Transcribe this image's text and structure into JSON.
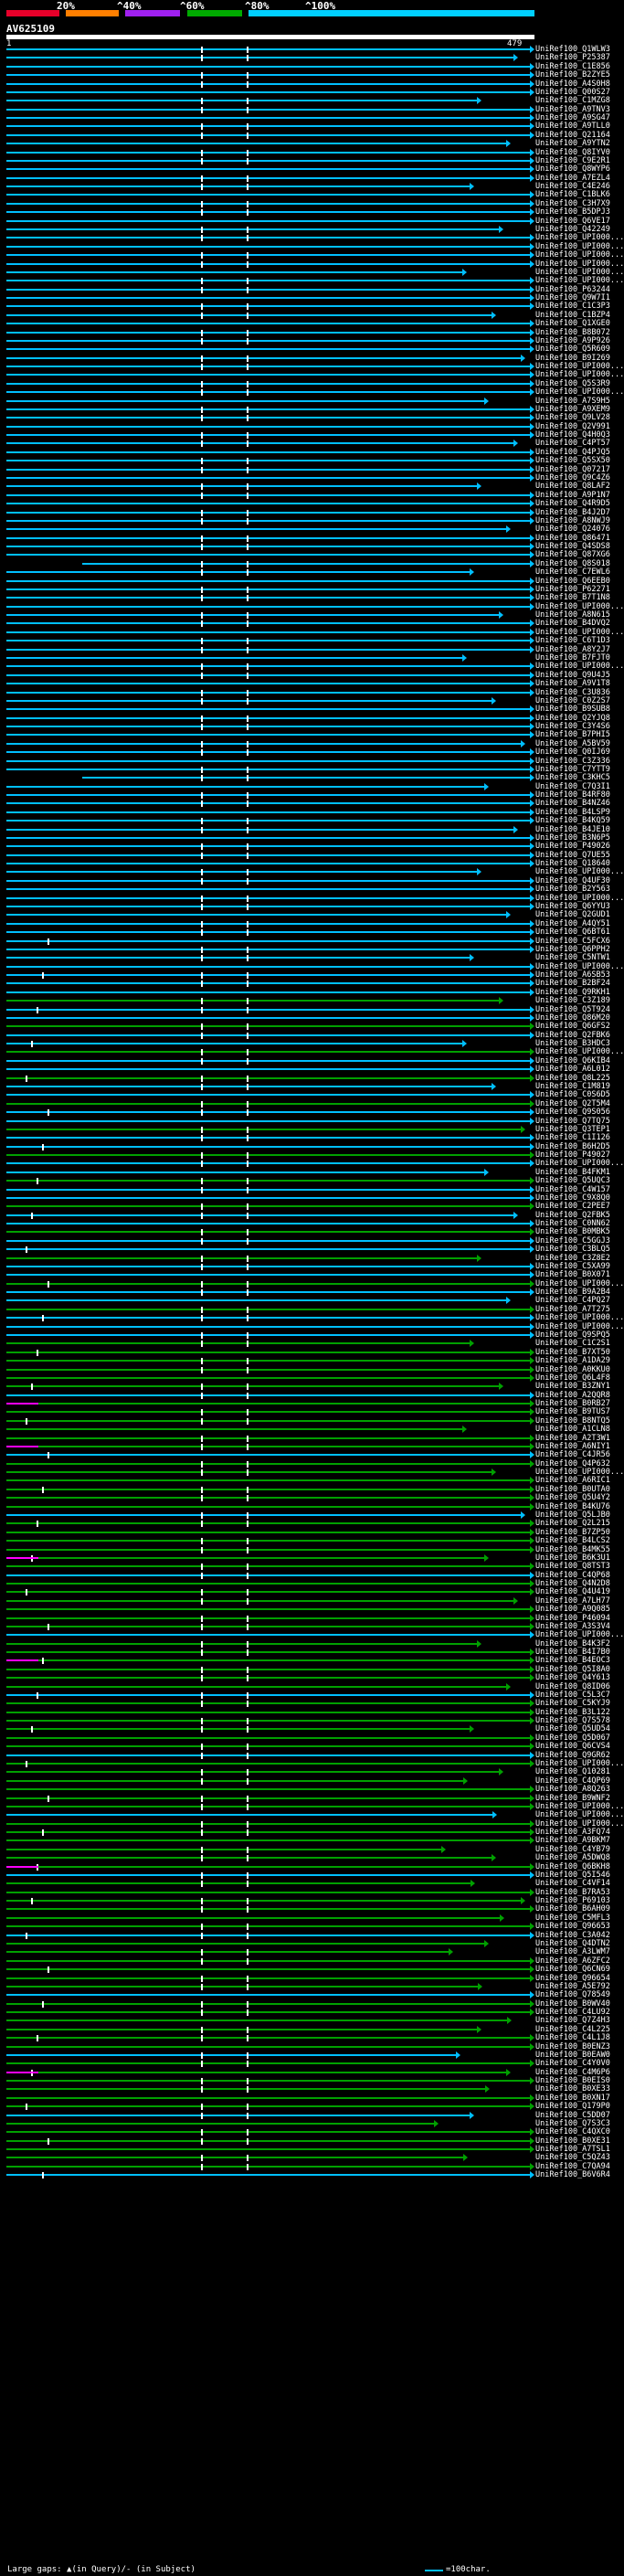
{
  "legend": {
    "ticks": [
      "20%",
      "^40%",
      "^60%",
      "^80%",
      "^100%"
    ],
    "colors": [
      "#e8002a",
      "#ff7f00",
      "#a020f0",
      "#00aa00",
      "#00cfff"
    ]
  },
  "query": {
    "title": "AV625109",
    "start": "1",
    "end": "479"
  },
  "colors": {
    "cyan": "#00bfff",
    "green": "#00a000",
    "magenta": "#ff00ff"
  },
  "hits": [
    "UniRef100_Q1WLW3",
    "UniRef100_P25387",
    "UniRef100_C1E856",
    "UniRef100_B2ZYE5",
    "UniRef100_A4S0H8",
    "UniRef100_Q00S27",
    "UniRef100_C1MZG8",
    "UniRef100_A9TNV3",
    "UniRef100_A9SG47",
    "UniRef100_A9TLL0",
    "UniRef100_Q21164",
    "UniRef100_A9YTN2",
    "UniRef100_Q8IYV0",
    "UniRef100_C9E2R1",
    "UniRef100_Q8WYP6",
    "UniRef100_A7EZL4",
    "UniRef100_C4E246",
    "UniRef100_C1BLK6",
    "UniRef100_C3H7X9",
    "UniRef100_B5DPJ3",
    "UniRef100_Q6VE17",
    "UniRef100_Q42249",
    "UniRef100_UPI000...",
    "UniRef100_UPI000...",
    "UniRef100_UPI000...",
    "UniRef100_UPI000...",
    "UniRef100_UPI000...",
    "UniRef100_UPI000...",
    "UniRef100_P63244",
    "UniRef100_Q9W7I1",
    "UniRef100_C1C3P3",
    "UniRef100_C1BZP4",
    "UniRef100_Q1XGE0",
    "UniRef100_B8B072",
    "UniRef100_A9P926",
    "UniRef100_Q5R609",
    "UniRef100_B9I269",
    "UniRef100_UPI000...",
    "UniRef100_UPI000...",
    "UniRef100_Q5S3R9",
    "UniRef100_UPI000...",
    "UniRef100_A7S9H5",
    "UniRef100_A9XEM9",
    "UniRef100_Q9LV28",
    "UniRef100_Q2V991",
    "UniRef100_Q4H0Q3",
    "UniRef100_C4PT57",
    "UniRef100_Q4PJQ5",
    "UniRef100_Q5SX50",
    "UniRef100_Q07217",
    "UniRef100_Q9C4Z6",
    "UniRef100_Q8LAF2",
    "UniRef100_A9P1N7",
    "UniRef100_Q4R9D5",
    "UniRef100_B4J2D7",
    "UniRef100_A8NWJ9",
    "UniRef100_Q24076",
    "UniRef100_Q86471",
    "UniRef100_Q4SDS8",
    "UniRef100_Q87XG6",
    "UniRef100_Q8S018",
    "UniRef100_C7EWL6",
    "UniRef100_Q6EEB0",
    "UniRef100_P62271",
    "UniRef100_B7T1N8",
    "UniRef100_UPI000...",
    "UniRef100_A8N615",
    "UniRef100_B4DVQ2",
    "UniRef100_UPI000...",
    "UniRef100_C6T1D3",
    "UniRef100_A8Y2J7",
    "UniRef100_B7FJT0",
    "UniRef100_UPI000...",
    "UniRef100_Q9U4J5",
    "UniRef100_A9V1T8",
    "UniRef100_C3U836",
    "UniRef100_C0Z2S7",
    "UniRef100_B9SUB8",
    "UniRef100_Q2YJQ8",
    "UniRef100_C3Y4S6",
    "UniRef100_B7PHI5",
    "UniRef100_A5BV59",
    "UniRef100_Q0IJ69",
    "UniRef100_C3Z336",
    "UniRef100_C7YTT9",
    "UniRef100_C3KHC5",
    "UniRef100_C7Q3I1",
    "UniRef100_B4RF80",
    "UniRef100_B4NZ46",
    "UniRef100_B4LSP9",
    "UniRef100_B4KQ59",
    "UniRef100_B4JE10",
    "UniRef100_B3N6P5",
    "UniRef100_P49026",
    "UniRef100_Q7UE55",
    "UniRef100_Q18640",
    "UniRef100_UPI000...",
    "UniRef100_Q4UF30",
    "UniRef100_B2Y563",
    "UniRef100_UPI000...",
    "UniRef100_Q6YYU3",
    "UniRef100_Q2GUD1",
    "UniRef100_A4QY51",
    "UniRef100_Q6BT61",
    "UniRef100_C5FCX6",
    "UniRef100_Q6PPH2",
    "UniRef100_C5NTW1",
    "UniRef100_UPI000...",
    "UniRef100_A6SB53",
    "UniRef100_B2BF24",
    "UniRef100_Q9RKH1",
    "UniRef100_C3Z189",
    "UniRef100_Q5T924",
    "UniRef100_Q86M20",
    "UniRef100_Q6GFS2",
    "UniRef100_Q2FBK6",
    "UniRef100_B3HDC3",
    "UniRef100_UPI000...",
    "UniRef100_Q6KIB4",
    "UniRef100_A6L012",
    "UniRef100_Q8L225",
    "UniRef100_C1M819",
    "UniRef100_C0S6D5",
    "UniRef100_Q2T5M4",
    "UniRef100_Q9S056",
    "UniRef100_Q7TQ75",
    "UniRef100_Q3TEP1",
    "UniRef100_C1I126",
    "UniRef100_B6H2D5",
    "UniRef100_P49027",
    "UniRef100_UPI000...",
    "UniRef100_B4FKM1",
    "UniRef100_Q5UQC3",
    "UniRef100_C4W157",
    "UniRef100_C9X8Q0",
    "UniRef100_C2PEE7",
    "UniRef100_Q2FBK5",
    "UniRef100_C0NN62",
    "UniRef100_B0MBK5",
    "UniRef100_C5GGJ3",
    "UniRef100_C3BLQ5",
    "UniRef100_C3Z8E2",
    "UniRef100_C5XA99",
    "UniRef100_B0X071",
    "UniRef100_UPI000...",
    "UniRef100_B9A2B4",
    "UniRef100_C4PQ27",
    "UniRef100_A7T275",
    "UniRef100_UPI000...",
    "UniRef100_UPI000...",
    "UniRef100_Q9SPQ5",
    "UniRef100_C1C2S1",
    "UniRef100_B7XT50",
    "UniRef100_A1DA29",
    "UniRef100_A0KKU0",
    "UniRef100_Q6L4F8",
    "UniRef100_B3ZNY1",
    "UniRef100_A2QQR8",
    "UniRef100_B0RB27",
    "UniRef100_B9TUS7",
    "UniRef100_B8NTQ5",
    "UniRef100_A1CLN8",
    "UniRef100_A2T3W1",
    "UniRef100_A6NIY1",
    "UniRef100_C4JR56",
    "UniRef100_Q4P632",
    "UniRef100_UPI000...",
    "UniRef100_A6RIC1",
    "UniRef100_B0UTA0",
    "UniRef100_Q5U4Y2",
    "UniRef100_B4KU76",
    "UniRef100_Q5LJB0",
    "UniRef100_Q2L215",
    "UniRef100_B7ZP50",
    "UniRef100_B4LCS2",
    "UniRef100_B4MK55",
    "UniRef100_B6K3U1",
    "UniRef100_Q8TST3",
    "UniRef100_C4QP68",
    "UniRef100_Q4N2D8",
    "UniRef100_Q4U419",
    "UniRef100_A7LH77",
    "UniRef100_A9Q085",
    "UniRef100_P46094",
    "UniRef100_A3S3V4",
    "UniRef100_UPI000...",
    "UniRef100_B4K3F2",
    "UniRef100_B4I7B0",
    "UniRef100_B4EOC3",
    "UniRef100_Q5I8A0",
    "UniRef100_Q4Y613",
    "UniRef100_Q8ID06",
    "UniRef100_C5L3C7",
    "UniRef100_C5KYJ9",
    "UniRef100_B3L122",
    "UniRef100_Q7S578",
    "UniRef100_Q5UD54",
    "UniRef100_Q5D067",
    "UniRef100_Q6CVS4",
    "UniRef100_Q9GR62",
    "UniRef100_UPI000...",
    "UniRef100_Q10281",
    "UniRef100_C4QP69",
    "UniRef100_A8Q263",
    "UniRef100_B9WNF2",
    "UniRef100_UPI000...",
    "UniRef100_UPI000...",
    "UniRef100_UPI000...",
    "UniRef100_A3FQ74",
    "UniRef100_A9BKM7",
    "UniRef100_C4YB79",
    "UniRef100_A5DWQ8",
    "UniRef100_Q6BKH8",
    "UniRef100_Q5I546",
    "UniRef100_C4VF14",
    "UniRef100_B7RA53",
    "UniRef100_P69103",
    "UniRef100_B6AH09",
    "UniRef100_C5MFL3",
    "UniRef100_Q96653",
    "UniRef100_C3A042",
    "UniRef100_Q4DTN2",
    "UniRef100_A3LWM7",
    "UniRef100_A6ZFC2",
    "UniRef100_Q6CN69",
    "UniRef100_Q96654",
    "UniRef100_A5E792",
    "UniRef100_Q78549",
    "UniRef100_B0WV40",
    "UniRef100_C4LU92",
    "UniRef100_Q7Z4H3",
    "UniRef100_C4L225",
    "UniRef100_C4L1J8",
    "UniRef100_B0ENZ3",
    "UniRef100_B0EAW0",
    "UniRef100_C4Y0V0",
    "UniRef100_C4M6P6",
    "UniRef100_B0EIS0",
    "UniRef100_B0XE33",
    "UniRef100_B0XN17",
    "UniRef100_Q179P0",
    "UniRef100_C5DD07",
    "UniRef100_Q7S3C3",
    "UniRef100_C4QXC0",
    "UniRef100_B0XE31",
    "UniRef100_A7TSL1",
    "UniRef100_C5QZ43",
    "UniRef100_C7QA94",
    "UniRef100_B6V6R4"
  ],
  "footer": {
    "gaps": "Large gaps: ▲(in Query)/- (in Subject)",
    "scale": "=100char."
  }
}
